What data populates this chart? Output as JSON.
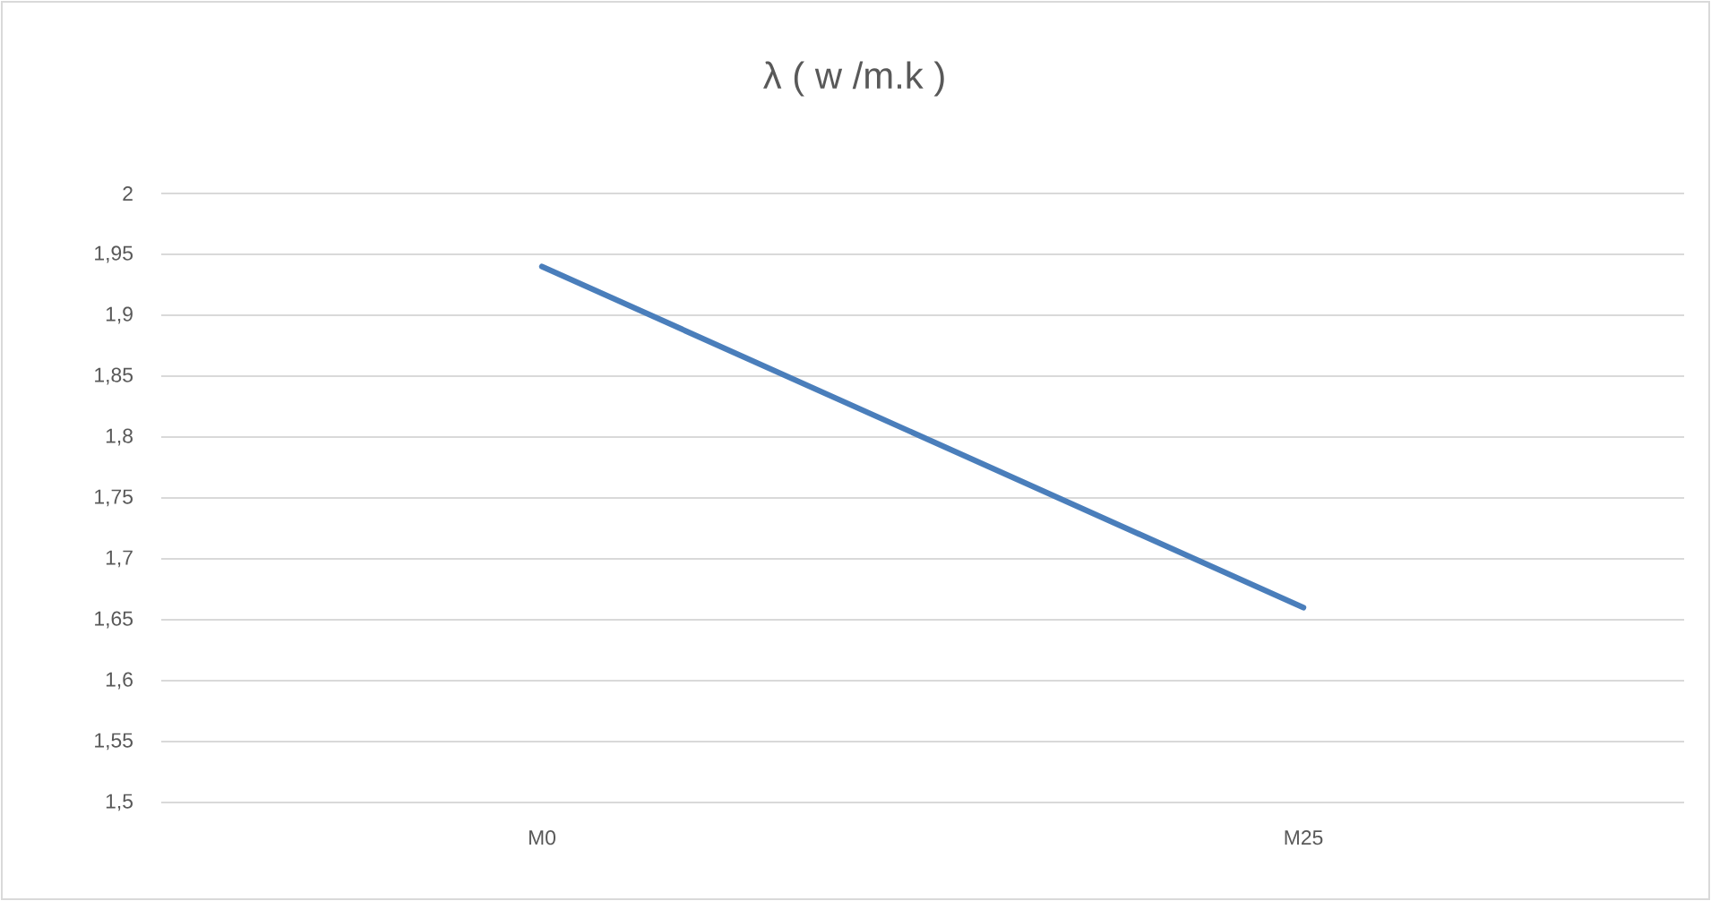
{
  "chart_data": {
    "type": "line",
    "title": "λ ( w /m.k )",
    "categories": [
      "M0",
      "M25"
    ],
    "series": [
      {
        "color": "#4a7ebb",
        "values": [
          1.94,
          1.66
        ]
      }
    ],
    "ylim": [
      1.5,
      2
    ],
    "yticks": [
      {
        "value": 1.5,
        "label": "1,5"
      },
      {
        "value": 1.55,
        "label": "1,55"
      },
      {
        "value": 1.6,
        "label": "1,6"
      },
      {
        "value": 1.65,
        "label": "1,65"
      },
      {
        "value": 1.7,
        "label": "1,7"
      },
      {
        "value": 1.75,
        "label": "1,75"
      },
      {
        "value": 1.8,
        "label": "1,8"
      },
      {
        "value": 1.85,
        "label": "1,85"
      },
      {
        "value": 1.9,
        "label": "1,9"
      },
      {
        "value": 1.95,
        "label": "1,95"
      },
      {
        "value": 2,
        "label": "2"
      }
    ],
    "grid": "y",
    "legend": false,
    "marker": "none",
    "line_style": "solid"
  }
}
